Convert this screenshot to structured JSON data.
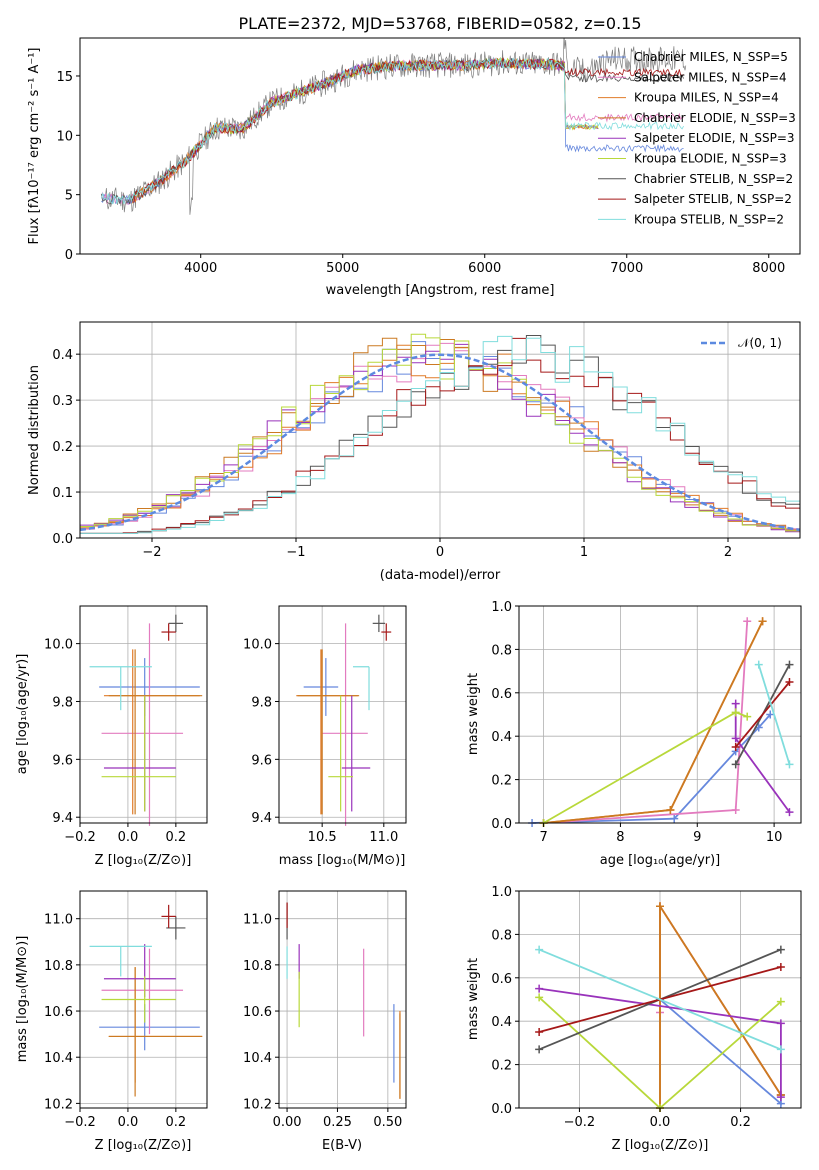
{
  "title": "PLATE=2372, MJD=53768, FIBERID=0582, z=0.15",
  "colors": {
    "chab_miles": "#6688dd",
    "salp_miles": "#e37bbf",
    "kroupa_miles": "#e07b29",
    "chab_elodie": "#cc7a22",
    "salp_elodie": "#9933bb",
    "kroupa_elodie": "#b8d83a",
    "chab_stelib": "#555555",
    "salp_stelib": "#a51818",
    "kroupa_stelib": "#80dddd",
    "normal": "#5c8ae0",
    "grid": "#b0b0b0",
    "data": "#7f7f7f"
  },
  "chart_data": [
    {
      "type": "line",
      "xlabel": "wavelength [Angstrom, rest frame]",
      "ylabel": "Flux [fλ10⁻¹⁷ erg cm⁻² s⁻¹ A⁻¹]",
      "xlim": [
        3150,
        8220
      ],
      "ylim": [
        0,
        18.2
      ],
      "xticks": [
        "4000",
        "5000",
        "6000",
        "7000",
        "8000"
      ],
      "yticks": [
        "0",
        "5",
        "10",
        "15"
      ],
      "legend_location": "top-right",
      "series": [
        {
          "name": "Chabrier MILES, N_SSP=5"
        },
        {
          "name": "Salpeter MILES, N_SSP=4"
        },
        {
          "name": "Kroupa MILES, N_SSP=4"
        },
        {
          "name": "Chabrier ELODIE, N_SSP=3"
        },
        {
          "name": "Salpeter ELODIE, N_SSP=3"
        },
        {
          "name": "Kroupa ELODIE, N_SSP=3"
        },
        {
          "name": "Chabrier STELIB, N_SSP=2"
        },
        {
          "name": "Salpeter STELIB, N_SSP=2"
        },
        {
          "name": "Kroupa STELIB, N_SSP=2"
        }
      ],
      "x": [
        3300,
        3500,
        3700,
        3900,
        4100,
        4300,
        4500,
        4700,
        4900,
        5100,
        5300,
        5500,
        5700,
        5900,
        6100,
        6300,
        6500,
        6700,
        6900,
        7100,
        7300
      ],
      "flux": [
        4.7,
        4.5,
        6.0,
        7.9,
        10.6,
        10.6,
        12.8,
        13.6,
        14.5,
        15.5,
        15.8,
        15.9,
        15.9,
        15.9,
        16.1,
        16.0,
        16.0,
        15.4,
        16.4,
        16.4,
        16.4
      ]
    },
    {
      "type": "line",
      "xlabel": "(data-model)/error",
      "ylabel": "Normed distribution",
      "xlim": [
        -2.5,
        2.5
      ],
      "ylim": [
        0,
        0.47
      ],
      "xticks": [
        "−2",
        "−1",
        "0",
        "1",
        "2"
      ],
      "yticks": [
        "0.0",
        "0.1",
        "0.2",
        "0.3",
        "0.4"
      ],
      "legend": "𝒩(0, 1)",
      "bin_width": 0.1,
      "model_centres": [
        0.0,
        0.0,
        0.0,
        -0.1,
        -0.1,
        -0.1,
        0.55,
        0.55,
        0.6
      ]
    },
    {
      "type": "scatter",
      "xlabel": "Z [log₁₀(Z/Z⊙)]",
      "ylabel": "age  [log₁₀(age/yr)]",
      "xlim": [
        -0.2,
        0.33
      ],
      "ylim": [
        9.38,
        10.13
      ],
      "xticks": [
        "−0.2",
        "0.0",
        "0.2"
      ],
      "yticks": [
        "9.4",
        "9.6",
        "9.8",
        "10.0"
      ],
      "points": [
        {
          "x": 0.07,
          "y": 9.85,
          "xerr": [
            0.19,
            0.23
          ],
          "yerr": [
            0.1,
            0.1
          ]
        },
        {
          "x": 0.09,
          "y": 9.69,
          "xerr": [
            0.2,
            0.14
          ],
          "yerr": [
            0.32,
            0.38
          ]
        },
        {
          "x": 0.02,
          "y": 9.82,
          "xerr": [
            0.12,
            0.28
          ],
          "yerr": [
            0.41,
            0.16
          ]
        },
        {
          "x": 0.03,
          "y": 9.82,
          "xerr": [
            0.11,
            0.28
          ],
          "yerr": [
            0.41,
            0.16
          ]
        },
        {
          "x": 0.07,
          "y": 9.57,
          "xerr": [
            0.17,
            0.13
          ],
          "yerr": [
            0.15,
            0.25
          ]
        },
        {
          "x": 0.07,
          "y": 9.54,
          "xerr": [
            0.18,
            0.13
          ],
          "yerr": [
            0.12,
            0.28
          ]
        },
        {
          "x": 0.2,
          "y": 10.07,
          "xerr": [
            0.03,
            0.03
          ],
          "yerr": [
            0.03,
            0.03
          ]
        },
        {
          "x": 0.17,
          "y": 10.04,
          "xerr": [
            0.03,
            0.03
          ],
          "yerr": [
            0.03,
            0.03
          ]
        },
        {
          "x": -0.03,
          "y": 9.92,
          "xerr": [
            0.13,
            0.13
          ],
          "yerr": [
            0.15,
            0.0
          ]
        }
      ]
    },
    {
      "type": "scatter",
      "xlabel": "mass [log₁₀(M/M⊙)]",
      "ylabel": "",
      "xlim": [
        10.15,
        11.18
      ],
      "ylim": [
        9.38,
        10.13
      ],
      "xticks": [
        "10.5",
        "11.0"
      ],
      "yticks": [
        "9.4",
        "9.6",
        "9.8",
        "10.0"
      ],
      "points": [
        {
          "x": 10.53,
          "y": 9.85,
          "xerr": [
            0.18,
            0.1
          ],
          "yerr": [
            0.1,
            0.1
          ]
        },
        {
          "x": 10.69,
          "y": 9.69,
          "xerr": [
            0.19,
            0.18
          ],
          "yerr": [
            0.32,
            0.38
          ]
        },
        {
          "x": 10.49,
          "y": 9.82,
          "xerr": [
            0.2,
            0.3
          ],
          "yerr": [
            0.41,
            0.16
          ]
        },
        {
          "x": 10.5,
          "y": 9.82,
          "xerr": [
            0.2,
            0.3
          ],
          "yerr": [
            0.41,
            0.16
          ]
        },
        {
          "x": 10.74,
          "y": 9.57,
          "xerr": [
            0.08,
            0.15
          ],
          "yerr": [
            0.15,
            0.25
          ]
        },
        {
          "x": 10.65,
          "y": 9.54,
          "xerr": [
            0.1,
            0.1
          ],
          "yerr": [
            0.12,
            0.28
          ]
        },
        {
          "x": 10.96,
          "y": 10.07,
          "xerr": [
            0.05,
            0.05
          ],
          "yerr": [
            0.03,
            0.03
          ]
        },
        {
          "x": 11.02,
          "y": 10.04,
          "xerr": [
            0.04,
            0.04
          ],
          "yerr": [
            0.03,
            0.03
          ]
        },
        {
          "x": 10.88,
          "y": 9.92,
          "xerr": [
            0.13,
            0.0
          ],
          "yerr": [
            0.15,
            0.0
          ]
        }
      ]
    },
    {
      "type": "line",
      "xlabel": "age  [log₁₀(age/yr)]",
      "ylabel": "mass weight",
      "xlim": [
        6.68,
        10.35
      ],
      "ylim": [
        0,
        1
      ],
      "xticks": [
        "7",
        "8",
        "9",
        "10"
      ],
      "yticks": [
        "0.0",
        "0.2",
        "0.4",
        "0.6",
        "0.8",
        "1.0"
      ],
      "series": [
        {
          "x": [
            6.85,
            8.7,
            9.5,
            9.8,
            9.95
          ],
          "y": [
            0.0,
            0.02,
            0.33,
            0.44,
            0.5
          ]
        },
        {
          "x": [
            7.0,
            9.5,
            9.65
          ],
          "y": [
            0.0,
            0.06,
            0.93
          ]
        },
        {
          "x": [
            7.0,
            8.65,
            9.85
          ],
          "y": [
            0.0,
            0.06,
            0.93
          ]
        },
        {
          "x": [
            7.0,
            8.65,
            9.85
          ],
          "y": [
            0.0,
            0.06,
            0.93
          ]
        },
        {
          "x": [
            9.5,
            9.5,
            10.2
          ],
          "y": [
            0.55,
            0.39,
            0.05
          ]
        },
        {
          "x": [
            7.0,
            9.5,
            9.65
          ],
          "y": [
            0.0,
            0.51,
            0.49
          ]
        },
        {
          "x": [
            9.5,
            10.2
          ],
          "y": [
            0.27,
            0.73
          ]
        },
        {
          "x": [
            9.5,
            10.2
          ],
          "y": [
            0.35,
            0.65
          ]
        },
        {
          "x": [
            9.8,
            10.2
          ],
          "y": [
            0.73,
            0.27
          ]
        }
      ]
    },
    {
      "type": "scatter",
      "xlabel": "Z [log₁₀(Z/Z⊙)]",
      "ylabel": "mass [log₁₀(M/M⊙)]",
      "xlim": [
        -0.2,
        0.33
      ],
      "ylim": [
        10.18,
        11.12
      ],
      "xticks": [
        "−0.2",
        "0.0",
        "0.2"
      ],
      "yticks": [
        "10.2",
        "10.4",
        "10.6",
        "10.8",
        "11.0"
      ],
      "points": [
        {
          "x": 0.07,
          "y": 10.53,
          "xerr": [
            0.19,
            0.23
          ],
          "yerr": [
            0.1,
            0.1
          ]
        },
        {
          "x": 0.09,
          "y": 10.69,
          "xerr": [
            0.2,
            0.14
          ],
          "yerr": [
            0.19,
            0.18
          ]
        },
        {
          "x": 0.03,
          "y": 10.49,
          "xerr": [
            0.11,
            0.28
          ],
          "yerr": [
            0.2,
            0.3
          ]
        },
        {
          "x": 0.03,
          "y": 10.49,
          "xerr": [
            0.11,
            0.28
          ],
          "yerr": [
            0.26,
            0.3
          ]
        },
        {
          "x": 0.07,
          "y": 10.74,
          "xerr": [
            0.17,
            0.13
          ],
          "yerr": [
            0.08,
            0.15
          ]
        },
        {
          "x": 0.07,
          "y": 10.65,
          "xerr": [
            0.18,
            0.13
          ],
          "yerr": [
            0.1,
            0.1
          ]
        },
        {
          "x": 0.2,
          "y": 10.96,
          "xerr": [
            0.04,
            0.04
          ],
          "yerr": [
            0.05,
            0.05
          ]
        },
        {
          "x": 0.17,
          "y": 11.01,
          "xerr": [
            0.03,
            0.03
          ],
          "yerr": [
            0.05,
            0.05
          ]
        },
        {
          "x": -0.03,
          "y": 10.88,
          "xerr": [
            0.13,
            0.13
          ],
          "yerr": [
            0.13,
            0.0
          ]
        }
      ]
    },
    {
      "type": "scatter",
      "xlabel": "E(B-V)",
      "ylabel": "",
      "xlim": [
        -0.04,
        0.59
      ],
      "ylim": [
        10.18,
        11.12
      ],
      "xticks": [
        "0.00",
        "0.25",
        "0.50"
      ],
      "yticks": [
        "10.2",
        "10.4",
        "10.6",
        "10.8",
        "11.0"
      ],
      "points": [
        {
          "x": 0.53,
          "y": 10.46,
          "yerr": [
            0.17,
            0.17
          ]
        },
        {
          "x": 0.38,
          "y": 10.68,
          "yerr": [
            0.19,
            0.19
          ]
        },
        {
          "x": 0.56,
          "y": 10.41,
          "yerr": [
            0.19,
            0.19
          ]
        },
        {
          "x": 0.56,
          "y": 10.39,
          "yerr": [
            0.17,
            0.2
          ]
        },
        {
          "x": 0.06,
          "y": 10.76,
          "yerr": [
            0.02,
            0.13
          ]
        },
        {
          "x": 0.06,
          "y": 10.65,
          "yerr": [
            0.12,
            0.12
          ]
        },
        {
          "x": 0.0,
          "y": 10.99,
          "yerr": [
            0.08,
            0.08
          ]
        },
        {
          "x": 0.0,
          "y": 11.01,
          "yerr": [
            0.05,
            0.06
          ]
        },
        {
          "x": 0.0,
          "y": 10.81,
          "yerr": [
            0.07,
            0.07
          ]
        }
      ]
    },
    {
      "type": "line",
      "xlabel": "Z [log₁₀(Z/Z⊙)]",
      "ylabel": "mass weight",
      "xlim": [
        -0.35,
        0.35
      ],
      "ylim": [
        0,
        1
      ],
      "xticks": [
        "−0.2",
        "0.0",
        "0.2"
      ],
      "yticks": [
        "0.0",
        "0.2",
        "0.4",
        "0.6",
        "0.8",
        "1.0"
      ],
      "series": [
        {
          "x": [
            0.0,
            0.3,
            0.3
          ],
          "y": [
            0.5,
            0.02,
            0.06
          ]
        },
        {
          "x": [
            0.0,
            0.0,
            0.3
          ],
          "y": [
            0.44,
            0.93,
            0.06
          ]
        },
        {
          "x": [
            0.0,
            0.0,
            0.3
          ],
          "y": [
            0.0,
            0.93,
            0.06
          ]
        },
        {
          "x": [
            0.0,
            0.0,
            0.3
          ],
          "y": [
            0.0,
            0.93,
            0.06
          ]
        },
        {
          "x": [
            -0.3,
            0.3,
            0.3
          ],
          "y": [
            0.55,
            0.39,
            0.05
          ]
        },
        {
          "x": [
            -0.3,
            0.0,
            0.3
          ],
          "y": [
            0.51,
            0.0,
            0.49
          ]
        },
        {
          "x": [
            -0.3,
            0.3
          ],
          "y": [
            0.27,
            0.73
          ]
        },
        {
          "x": [
            -0.3,
            0.3
          ],
          "y": [
            0.35,
            0.65
          ]
        },
        {
          "x": [
            -0.3,
            0.3
          ],
          "y": [
            0.73,
            0.27
          ]
        }
      ]
    }
  ]
}
